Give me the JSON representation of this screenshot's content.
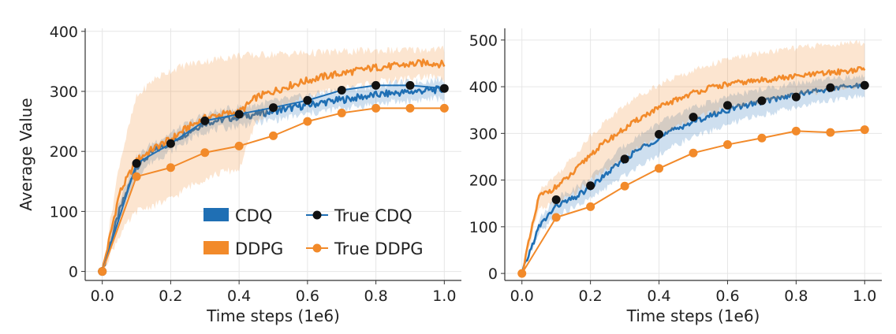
{
  "chart_data": [
    {
      "type": "line",
      "title": "",
      "xlabel": "Time steps (1e6)",
      "ylabel": "Average Value",
      "xlim": [
        -0.05,
        1.05
      ],
      "ylim": [
        -15,
        405
      ],
      "xticks": [
        0.0,
        0.2,
        0.4,
        0.6,
        0.8,
        1.0
      ],
      "xtick_labels": [
        "0.0",
        "0.2",
        "0.4",
        "0.6",
        "0.8",
        "1.0"
      ],
      "yticks": [
        0,
        100,
        200,
        300,
        400
      ],
      "ytick_labels": [
        "0",
        "100",
        "200",
        "300",
        "400"
      ],
      "grid": true,
      "legend_position": "bottom-right",
      "legend": [
        "CDQ",
        "DDPG",
        "True CDQ",
        "True DDPG"
      ],
      "series": [
        {
          "name": "CDQ",
          "style": "band",
          "color": "#1f6fb4",
          "x": [
            0,
            0.05,
            0.1,
            0.15,
            0.2,
            0.25,
            0.3,
            0.35,
            0.4,
            0.45,
            0.5,
            0.55,
            0.6,
            0.65,
            0.7,
            0.75,
            0.8,
            0.85,
            0.9,
            0.95,
            1.0
          ],
          "y": [
            0,
            100,
            175,
            200,
            215,
            232,
            248,
            253,
            258,
            262,
            267,
            272,
            277,
            282,
            286,
            290,
            294,
            297,
            299,
            302,
            303
          ],
          "lower": [
            0,
            80,
            160,
            185,
            200,
            218,
            234,
            238,
            243,
            248,
            252,
            257,
            262,
            267,
            271,
            275,
            279,
            282,
            284,
            287,
            288
          ],
          "upper": [
            0,
            120,
            190,
            215,
            230,
            246,
            262,
            268,
            274,
            278,
            283,
            288,
            293,
            298,
            302,
            306,
            310,
            313,
            315,
            318,
            320
          ]
        },
        {
          "name": "DDPG",
          "style": "band",
          "color": "#f28a2a",
          "x": [
            0,
            0.05,
            0.1,
            0.15,
            0.2,
            0.25,
            0.3,
            0.35,
            0.4,
            0.45,
            0.5,
            0.55,
            0.6,
            0.65,
            0.7,
            0.75,
            0.8,
            0.85,
            0.9,
            0.95,
            1.0
          ],
          "y": [
            0,
            130,
            185,
            205,
            220,
            240,
            255,
            262,
            265,
            290,
            300,
            310,
            318,
            325,
            330,
            335,
            340,
            342,
            345,
            348,
            345
          ],
          "lower": [
            0,
            60,
            100,
            110,
            120,
            140,
            155,
            165,
            170,
            250,
            270,
            280,
            290,
            298,
            305,
            310,
            315,
            318,
            322,
            325,
            320
          ],
          "upper": [
            0,
            180,
            290,
            320,
            335,
            345,
            350,
            355,
            360,
            360,
            362,
            363,
            364,
            365,
            366,
            367,
            368,
            368,
            369,
            370,
            370
          ]
        },
        {
          "name": "True CDQ",
          "style": "markers",
          "color": "#1f6fb4",
          "marker_color": "#111111",
          "x": [
            0,
            0.1,
            0.2,
            0.3,
            0.4,
            0.5,
            0.6,
            0.7,
            0.8,
            0.9,
            1.0
          ],
          "y": [
            0,
            180,
            213,
            251,
            262,
            273,
            285,
            302,
            310,
            310,
            305
          ]
        },
        {
          "name": "True DDPG",
          "style": "markers",
          "color": "#f28a2a",
          "marker_color": "#f28a2a",
          "x": [
            0,
            0.1,
            0.2,
            0.3,
            0.4,
            0.5,
            0.6,
            0.7,
            0.8,
            0.9,
            1.0
          ],
          "y": [
            0,
            158,
            173,
            198,
            209,
            226,
            250,
            264,
            272,
            272,
            272
          ]
        }
      ]
    },
    {
      "type": "line",
      "title": "",
      "xlabel": "Time steps (1e6)",
      "ylabel": "",
      "xlim": [
        -0.05,
        1.05
      ],
      "ylim": [
        -15,
        525
      ],
      "xticks": [
        0.0,
        0.2,
        0.4,
        0.6,
        0.8,
        1.0
      ],
      "xtick_labels": [
        "0.0",
        "0.2",
        "0.4",
        "0.6",
        "0.8",
        "1.0"
      ],
      "yticks": [
        0,
        100,
        200,
        300,
        400,
        500
      ],
      "ytick_labels": [
        "0",
        "100",
        "200",
        "300",
        "400",
        "500"
      ],
      "grid": true,
      "legend_position": "none",
      "series": [
        {
          "name": "CDQ",
          "style": "band",
          "color": "#1f6fb4",
          "x": [
            0,
            0.05,
            0.1,
            0.15,
            0.2,
            0.25,
            0.3,
            0.35,
            0.4,
            0.45,
            0.5,
            0.55,
            0.6,
            0.65,
            0.7,
            0.75,
            0.8,
            0.85,
            0.9,
            0.95,
            1.0
          ],
          "y": [
            0,
            100,
            145,
            160,
            185,
            215,
            245,
            270,
            290,
            310,
            325,
            338,
            350,
            360,
            368,
            376,
            383,
            390,
            395,
            400,
            403
          ],
          "lower": [
            0,
            85,
            125,
            140,
            160,
            185,
            210,
            235,
            255,
            275,
            292,
            305,
            318,
            330,
            340,
            348,
            356,
            364,
            370,
            376,
            380
          ],
          "upper": [
            0,
            115,
            165,
            180,
            205,
            240,
            275,
            300,
            322,
            340,
            355,
            367,
            378,
            387,
            394,
            400,
            407,
            412,
            416,
            420,
            422
          ]
        },
        {
          "name": "DDPG",
          "style": "band",
          "color": "#f28a2a",
          "x": [
            0,
            0.05,
            0.1,
            0.15,
            0.2,
            0.25,
            0.3,
            0.35,
            0.4,
            0.45,
            0.5,
            0.55,
            0.6,
            0.65,
            0.7,
            0.75,
            0.8,
            0.85,
            0.9,
            0.95,
            1.0
          ],
          "y": [
            0,
            165,
            185,
            215,
            255,
            285,
            310,
            335,
            355,
            372,
            387,
            398,
            405,
            410,
            414,
            418,
            422,
            426,
            430,
            434,
            438
          ],
          "lower": [
            0,
            140,
            150,
            170,
            200,
            225,
            250,
            275,
            295,
            313,
            330,
            345,
            355,
            363,
            370,
            376,
            382,
            388,
            393,
            398,
            402
          ],
          "upper": [
            0,
            180,
            210,
            250,
            295,
            330,
            360,
            385,
            405,
            420,
            435,
            448,
            458,
            466,
            472,
            478,
            483,
            487,
            490,
            493,
            495
          ]
        },
        {
          "name": "True CDQ",
          "style": "markers",
          "color": "#1f6fb4",
          "marker_color": "#111111",
          "x": [
            0.1,
            0.2,
            0.3,
            0.4,
            0.5,
            0.6,
            0.7,
            0.8,
            0.9,
            1.0
          ],
          "y": [
            158,
            188,
            245,
            298,
            335,
            360,
            370,
            378,
            398,
            403
          ],
          "no_line": true
        },
        {
          "name": "True DDPG",
          "style": "markers",
          "color": "#f28a2a",
          "marker_color": "#f28a2a",
          "x": [
            0,
            0.1,
            0.2,
            0.3,
            0.4,
            0.5,
            0.6,
            0.7,
            0.8,
            0.9,
            1.0
          ],
          "y": [
            0,
            120,
            143,
            187,
            225,
            258,
            276,
            290,
            305,
            302,
            308
          ]
        }
      ]
    }
  ]
}
